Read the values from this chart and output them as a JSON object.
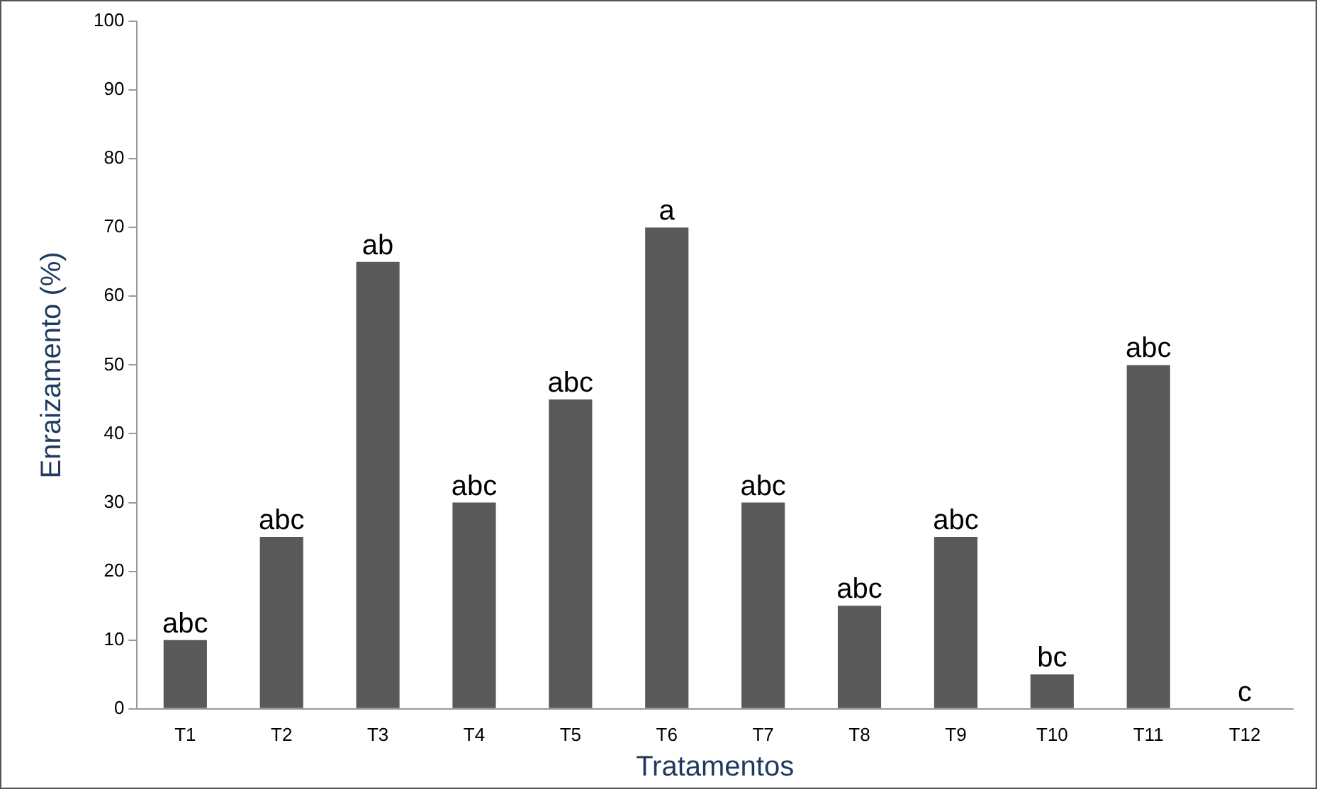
{
  "chart_data": {
    "type": "bar",
    "xlabel": "Tratamentos",
    "ylabel": "Enraizamento (%)",
    "categories": [
      "T1",
      "T2",
      "T3",
      "T4",
      "T5",
      "T6",
      "T7",
      "T8",
      "T9",
      "T10",
      "T11",
      "T12"
    ],
    "values": [
      10,
      25,
      65,
      30,
      45,
      70,
      30,
      15,
      25,
      5,
      50,
      0
    ],
    "value_labels": [
      "abc",
      "abc",
      "ab",
      "abc",
      "abc",
      "a",
      "abc",
      "abc",
      "abc",
      "bc",
      "abc",
      "c"
    ],
    "color": "#595959",
    "ylim": [
      0,
      100
    ],
    "yticks": [
      0,
      10,
      20,
      30,
      40,
      50,
      60,
      70,
      80,
      90,
      100
    ],
    "grid": false,
    "legend": false
  }
}
